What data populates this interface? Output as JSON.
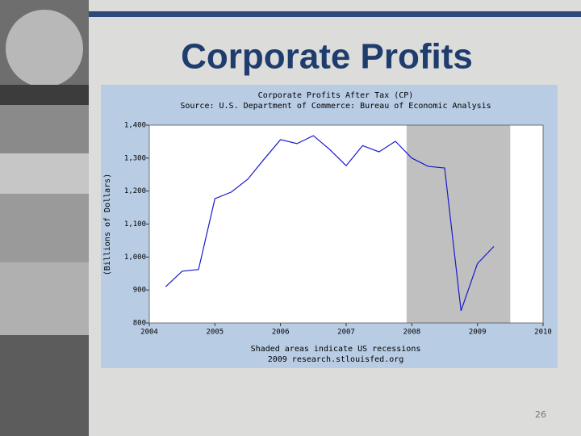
{
  "slide": {
    "title": "Corporate Profits",
    "page_number": "26"
  },
  "chart_data": {
    "type": "line",
    "title": "Corporate Profits After Tax (CP)",
    "subtitle": "Source: U.S. Department of Commerce: Bureau of Economic Analysis",
    "y_label": "(Billions of Dollars)",
    "note": "Shaded areas indicate US recessions",
    "credit": "2009 research.stlouisfed.org",
    "x": [
      2004.25,
      2004.5,
      2004.75,
      2005.0,
      2005.25,
      2005.5,
      2005.75,
      2006.0,
      2006.25,
      2006.5,
      2006.75,
      2007.0,
      2007.25,
      2007.5,
      2007.75,
      2008.0,
      2008.25,
      2008.5,
      2008.75,
      2009.0,
      2009.25
    ],
    "series": [
      {
        "color": "#1a1acc",
        "values": [
          910,
          957,
          962,
          1177,
          1197,
          1236,
          1297,
          1356,
          1344,
          1368,
          1326,
          1277,
          1338,
          1319,
          1351,
          1300,
          1275,
          1270,
          837,
          980,
          1032
        ]
      }
    ],
    "recession": [
      2007.92,
      2009.5
    ],
    "recession_color": "#c0c0c0",
    "xlim": [
      2004,
      2010
    ],
    "xticks": [
      2004,
      2005,
      2006,
      2007,
      2008,
      2009,
      2010
    ],
    "ylim": [
      800,
      1400
    ],
    "yticks": [
      800,
      900,
      {
        "value": 1000,
        "label": "1,000"
      },
      {
        "value": 1100,
        "label": "1,100"
      },
      {
        "value": 1200,
        "label": "1,200"
      },
      {
        "value": 1300,
        "label": "1,300"
      },
      {
        "value": 1400,
        "label": "1,400"
      }
    ]
  }
}
